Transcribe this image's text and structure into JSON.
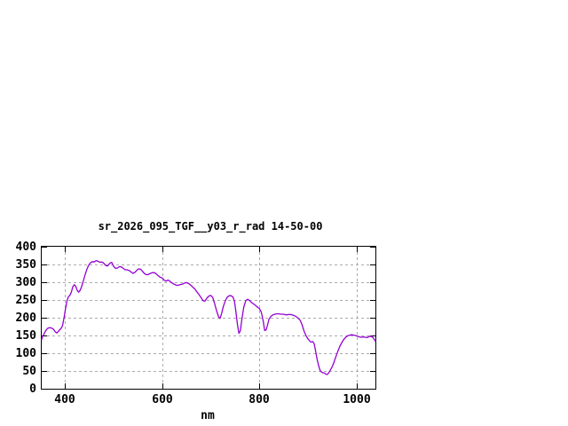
{
  "page": {
    "background": "#ffffff"
  },
  "chart_data": {
    "type": "line",
    "title": "sr_2026_095_TGF__y03_r_rad 14-50-00",
    "xlabel": "nm",
    "ylabel": "",
    "xlim": [
      352,
      1039
    ],
    "ylim": [
      0,
      400
    ],
    "x_ticks": [
      400,
      600,
      800,
      1000
    ],
    "y_ticks": [
      0,
      50,
      100,
      150,
      200,
      250,
      300,
      350,
      400
    ],
    "grid": true,
    "legend_position": "none",
    "line_color": "#9400d3",
    "grid_color": "#ababab",
    "axis_color": "#000000",
    "series": [
      {
        "name": "sr_2026_095_TGF__y03_r_rad",
        "points": [
          [
            352,
            139
          ],
          [
            354,
            148
          ],
          [
            356,
            152
          ],
          [
            358,
            158
          ],
          [
            360,
            163
          ],
          [
            364,
            170
          ],
          [
            368,
            172
          ],
          [
            372,
            171
          ],
          [
            376,
            168
          ],
          [
            380,
            160
          ],
          [
            383,
            157
          ],
          [
            386,
            161
          ],
          [
            389,
            166
          ],
          [
            392,
            170
          ],
          [
            395,
            178
          ],
          [
            398,
            200
          ],
          [
            401,
            225
          ],
          [
            404,
            248
          ],
          [
            407,
            259
          ],
          [
            410,
            263
          ],
          [
            413,
            272
          ],
          [
            416,
            287
          ],
          [
            419,
            293
          ],
          [
            422,
            289
          ],
          [
            425,
            277
          ],
          [
            428,
            272
          ],
          [
            431,
            277
          ],
          [
            434,
            287
          ],
          [
            437,
            300
          ],
          [
            440,
            315
          ],
          [
            444,
            333
          ],
          [
            448,
            346
          ],
          [
            452,
            354
          ],
          [
            456,
            358
          ],
          [
            460,
            357
          ],
          [
            464,
            361
          ],
          [
            468,
            359
          ],
          [
            472,
            356
          ],
          [
            476,
            357
          ],
          [
            480,
            353
          ],
          [
            484,
            347
          ],
          [
            488,
            346
          ],
          [
            492,
            353
          ],
          [
            496,
            356
          ],
          [
            500,
            345
          ],
          [
            504,
            339
          ],
          [
            508,
            340
          ],
          [
            512,
            344
          ],
          [
            516,
            343
          ],
          [
            520,
            339
          ],
          [
            524,
            335
          ],
          [
            528,
            335
          ],
          [
            532,
            333
          ],
          [
            536,
            329
          ],
          [
            540,
            325
          ],
          [
            544,
            328
          ],
          [
            548,
            334
          ],
          [
            552,
            338
          ],
          [
            556,
            336
          ],
          [
            560,
            330
          ],
          [
            564,
            324
          ],
          [
            568,
            321
          ],
          [
            572,
            322
          ],
          [
            576,
            325
          ],
          [
            580,
            327
          ],
          [
            584,
            327
          ],
          [
            588,
            323
          ],
          [
            592,
            318
          ],
          [
            596,
            314
          ],
          [
            600,
            312
          ],
          [
            604,
            306
          ],
          [
            608,
            303
          ],
          [
            612,
            306
          ],
          [
            616,
            303
          ],
          [
            620,
            298
          ],
          [
            624,
            295
          ],
          [
            628,
            292
          ],
          [
            632,
            291
          ],
          [
            636,
            293
          ],
          [
            640,
            294
          ],
          [
            644,
            296
          ],
          [
            648,
            299
          ],
          [
            652,
            298
          ],
          [
            656,
            295
          ],
          [
            660,
            290
          ],
          [
            664,
            285
          ],
          [
            668,
            280
          ],
          [
            672,
            272
          ],
          [
            676,
            265
          ],
          [
            680,
            257
          ],
          [
            684,
            248
          ],
          [
            688,
            247
          ],
          [
            692,
            255
          ],
          [
            696,
            261
          ],
          [
            700,
            263
          ],
          [
            704,
            257
          ],
          [
            708,
            240
          ],
          [
            712,
            220
          ],
          [
            716,
            203
          ],
          [
            719,
            198
          ],
          [
            722,
            210
          ],
          [
            726,
            232
          ],
          [
            730,
            248
          ],
          [
            734,
            258
          ],
          [
            738,
            262
          ],
          [
            742,
            262
          ],
          [
            746,
            258
          ],
          [
            749,
            245
          ],
          [
            752,
            215
          ],
          [
            755,
            180
          ],
          [
            758,
            156
          ],
          [
            761,
            163
          ],
          [
            764,
            195
          ],
          [
            768,
            230
          ],
          [
            772,
            248
          ],
          [
            776,
            252
          ],
          [
            780,
            248
          ],
          [
            784,
            243
          ],
          [
            788,
            239
          ],
          [
            792,
            235
          ],
          [
            796,
            230
          ],
          [
            800,
            226
          ],
          [
            804,
            216
          ],
          [
            808,
            190
          ],
          [
            811,
            164
          ],
          [
            814,
            166
          ],
          [
            817,
            180
          ],
          [
            820,
            196
          ],
          [
            824,
            204
          ],
          [
            828,
            208
          ],
          [
            832,
            210
          ],
          [
            836,
            211
          ],
          [
            840,
            211
          ],
          [
            844,
            210
          ],
          [
            848,
            210
          ],
          [
            852,
            209
          ],
          [
            856,
            208
          ],
          [
            860,
            209
          ],
          [
            864,
            209
          ],
          [
            868,
            208
          ],
          [
            872,
            206
          ],
          [
            876,
            203
          ],
          [
            880,
            198
          ],
          [
            884,
            193
          ],
          [
            888,
            180
          ],
          [
            892,
            163
          ],
          [
            896,
            150
          ],
          [
            900,
            141
          ],
          [
            904,
            134
          ],
          [
            907,
            131
          ],
          [
            910,
            133
          ],
          [
            913,
            127
          ],
          [
            916,
            105
          ],
          [
            919,
            83
          ],
          [
            922,
            65
          ],
          [
            925,
            52
          ],
          [
            928,
            47
          ],
          [
            931,
            45
          ],
          [
            934,
            44
          ],
          [
            937,
            41
          ],
          [
            940,
            40
          ],
          [
            943,
            45
          ],
          [
            946,
            52
          ],
          [
            950,
            62
          ],
          [
            954,
            76
          ],
          [
            958,
            92
          ],
          [
            962,
            107
          ],
          [
            966,
            120
          ],
          [
            970,
            130
          ],
          [
            974,
            139
          ],
          [
            978,
            145
          ],
          [
            982,
            149
          ],
          [
            986,
            151
          ],
          [
            990,
            152
          ],
          [
            994,
            151
          ],
          [
            998,
            150
          ],
          [
            1002,
            148
          ],
          [
            1006,
            146
          ],
          [
            1010,
            145
          ],
          [
            1014,
            146
          ],
          [
            1018,
            145
          ],
          [
            1022,
            144
          ],
          [
            1026,
            147
          ],
          [
            1030,
            148
          ],
          [
            1034,
            144
          ],
          [
            1037,
            138
          ],
          [
            1039,
            134
          ]
        ]
      }
    ]
  }
}
